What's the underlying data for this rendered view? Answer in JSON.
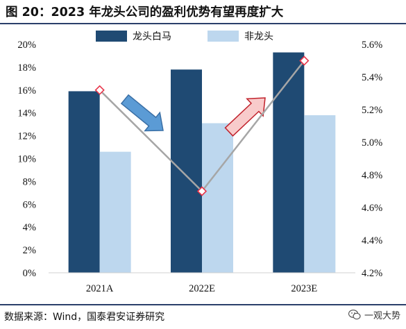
{
  "title": "图 20：2023 年龙头公司的盈利优势有望再度扩大",
  "source": "数据来源：Wind，国泰君安证券研究",
  "watermark": "一观大势",
  "colors": {
    "dark": "#1f4a73",
    "light": "#bdd7ee",
    "line": "#a6a6a6",
    "marker": "#e8354a",
    "arrow_down": "#5b9bd5",
    "arrow_up": "#f8cbcb"
  },
  "chart_data": {
    "type": "bar",
    "categories": [
      "2021A",
      "2022E",
      "2023E"
    ],
    "series": [
      {
        "name": "龙头白马",
        "axis": "left",
        "values": [
          15.9,
          17.8,
          19.3
        ],
        "color": "#1f4a73"
      },
      {
        "name": "非龙头",
        "axis": "left",
        "values": [
          10.6,
          13.1,
          13.8
        ],
        "color": "#bdd7ee"
      },
      {
        "axis": "right",
        "type": "line",
        "values": [
          5.32,
          4.7,
          5.5
        ],
        "color": "#a6a6a6",
        "marker_color": "#e8354a"
      }
    ],
    "y_left": {
      "ticks": [
        "0%",
        "2%",
        "4%",
        "6%",
        "8%",
        "10%",
        "12%",
        "14%",
        "16%",
        "18%",
        "20%"
      ],
      "ylim": [
        0,
        20
      ]
    },
    "y_right": {
      "ticks": [
        "4.2%",
        "4.4%",
        "4.6%",
        "4.8%",
        "5.0%",
        "5.2%",
        "5.4%",
        "5.6%"
      ],
      "ylim": [
        4.2,
        5.6
      ]
    },
    "legend_position": "top",
    "grid": false
  }
}
